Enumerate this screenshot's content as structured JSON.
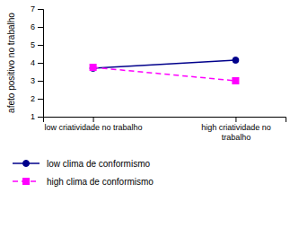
{
  "chart_data": {
    "type": "line",
    "categories": [
      "low criatividade no trabalho",
      "high criatividade no\ntrabalho"
    ],
    "ylabel": "afeto positivo no trabalho",
    "ylim": [
      1,
      7
    ],
    "yticks": [
      1,
      2,
      3,
      4,
      5,
      6,
      7
    ],
    "grid": false,
    "legend": "bottom",
    "series": [
      {
        "name": "low clima de conformismo",
        "color": "#00008B",
        "values": [
          3.7,
          4.15
        ],
        "marker": "circle",
        "line_style": "solid"
      },
      {
        "name": "high clima de conformismo",
        "color": "#FF00FF",
        "values": [
          3.75,
          3.0
        ],
        "marker": "square",
        "line_style": "dashed"
      }
    ]
  }
}
